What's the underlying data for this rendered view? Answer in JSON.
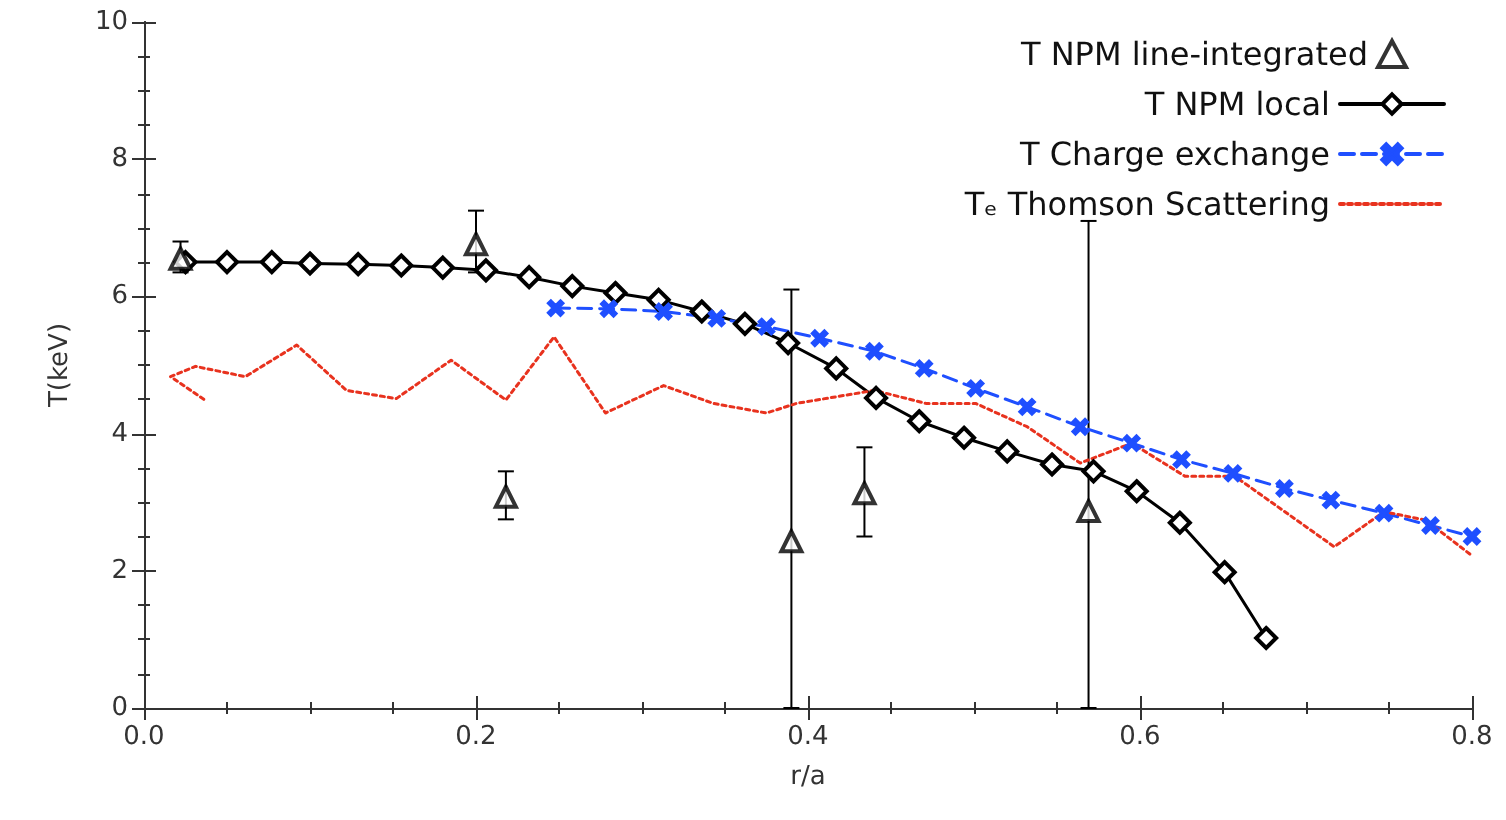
{
  "chart_data": {
    "type": "line",
    "xlabel": "r/a",
    "ylabel": "T(keV)",
    "xlim": [
      0,
      0.8
    ],
    "xticks": [
      {
        "value": 0,
        "label": "0.0"
      },
      0.2,
      0.4,
      0.6,
      0.8
    ],
    "ylim": [
      0,
      10
    ],
    "yticks": [
      0,
      2,
      4,
      6,
      8,
      10
    ],
    "grid": false,
    "legend": "top right",
    "series": [
      {
        "name": "T NPM line-integrated",
        "type": "scatter",
        "marker": "triangle",
        "color": "#000000",
        "x": [
          0.022,
          0.2,
          0.218,
          0.39,
          0.434,
          0.569
        ],
        "values": [
          6.55,
          6.76,
          3.08,
          2.43,
          3.13,
          2.87
        ],
        "errors": [
          [
            6.35,
            6.8
          ],
          [
            6.35,
            7.25
          ],
          [
            2.75,
            3.45
          ],
          [
            0,
            6.1
          ],
          [
            2.5,
            3.8
          ],
          [
            0,
            7.1
          ]
        ]
      },
      {
        "name": "T NPM local",
        "type": "line",
        "marker": "diamond",
        "line_style": "solid",
        "color": "#000000",
        "x": [
          0.025,
          0.05,
          0.077,
          0.1,
          0.129,
          0.155,
          0.18,
          0.206,
          0.232,
          0.258,
          0.284,
          0.31,
          0.336,
          0.362,
          0.388,
          0.417,
          0.441,
          0.467,
          0.494,
          0.52,
          0.547,
          0.572,
          0.598,
          0.624,
          0.651,
          0.676
        ],
        "values": [
          6.5,
          6.5,
          6.5,
          6.48,
          6.47,
          6.45,
          6.42,
          6.38,
          6.28,
          6.15,
          6.05,
          5.95,
          5.78,
          5.6,
          5.32,
          4.95,
          4.52,
          4.18,
          3.94,
          3.74,
          3.55,
          3.45,
          3.16,
          2.7,
          1.98,
          1.02
        ]
      },
      {
        "name": "T Charge exchange",
        "type": "line",
        "marker": "cross",
        "line_style": "dashed",
        "color": "#1f4fff",
        "x": [
          0.248,
          0.28,
          0.313,
          0.345,
          0.375,
          0.407,
          0.44,
          0.47,
          0.501,
          0.532,
          0.564,
          0.595,
          0.625,
          0.656,
          0.687,
          0.715,
          0.747,
          0.775,
          0.8
        ],
        "values": [
          5.83,
          5.82,
          5.78,
          5.68,
          5.56,
          5.39,
          5.2,
          4.95,
          4.66,
          4.39,
          4.1,
          3.86,
          3.62,
          3.42,
          3.2,
          3.03,
          2.84,
          2.66,
          2.5
        ]
      },
      {
        "name": "Tₑ Thomson Scattering",
        "type": "line",
        "marker": "none",
        "line_style": "dotted",
        "color": "#e8321e",
        "x": [
          0.036,
          0.016,
          0.031,
          0.061,
          0.092,
          0.122,
          0.152,
          0.185,
          0.218,
          0.247,
          0.278,
          0.313,
          0.343,
          0.375,
          0.393,
          0.44,
          0.471,
          0.501,
          0.532,
          0.564,
          0.595,
          0.627,
          0.657,
          0.717,
          0.747,
          0.772,
          0.8
        ],
        "values": [
          4.5,
          4.83,
          4.98,
          4.83,
          5.29,
          4.63,
          4.51,
          5.07,
          4.49,
          5.41,
          4.3,
          4.7,
          4.44,
          4.3,
          4.44,
          4.63,
          4.44,
          4.44,
          4.1,
          3.57,
          3.86,
          3.38,
          3.38,
          2.35,
          2.86,
          2.74,
          2.22
        ]
      }
    ]
  }
}
